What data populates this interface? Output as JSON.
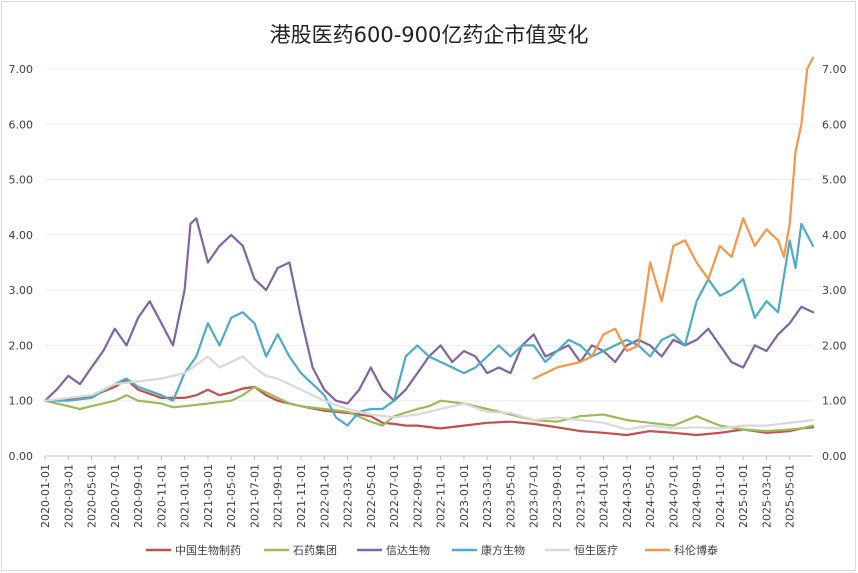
{
  "chart_data": {
    "type": "line",
    "title": "港股医药600-900亿药企市值变化",
    "xlabel": "",
    "ylabel": "",
    "ylim": [
      0,
      7
    ],
    "yticks": [
      "0.00",
      "1.00",
      "2.00",
      "3.00",
      "4.00",
      "5.00",
      "6.00",
      "7.00"
    ],
    "xticks": [
      "2020-01-01",
      "2020-03-01",
      "2020-05-01",
      "2020-07-01",
      "2020-09-01",
      "2020-11-01",
      "2021-01-01",
      "2021-03-01",
      "2021-05-01",
      "2021-07-01",
      "2021-09-01",
      "2021-11-01",
      "2022-01-01",
      "2022-03-01",
      "2022-05-01",
      "2022-07-01",
      "2022-09-01",
      "2022-11-01",
      "2023-01-01",
      "2023-03-01",
      "2023-05-01",
      "2023-07-01",
      "2023-09-01",
      "2023-11-01",
      "2024-01-01",
      "2024-03-01",
      "2024-05-01",
      "2024-07-01",
      "2024-09-01",
      "2024-11-01",
      "2025-01-01",
      "2025-03-01",
      "2025-05-01"
    ],
    "grid": "horizontal",
    "legend": "bottom",
    "x_unit": "month index from 2020-01",
    "series": [
      {
        "name": "中国生物制药",
        "color": "#c0504d",
        "x": [
          0,
          2,
          4,
          6,
          7,
          8,
          10,
          12,
          13,
          14,
          15,
          16,
          17,
          18,
          19,
          20,
          21,
          22,
          24,
          26,
          28,
          29,
          30,
          31,
          32,
          34,
          36,
          38,
          40,
          42,
          44,
          46,
          48,
          50,
          52,
          54,
          56,
          58,
          60,
          62,
          64,
          65,
          66
        ],
        "values": [
          1.0,
          1.02,
          1.08,
          1.25,
          1.38,
          1.2,
          1.05,
          1.05,
          1.1,
          1.2,
          1.1,
          1.15,
          1.22,
          1.25,
          1.1,
          1.0,
          0.95,
          0.9,
          0.82,
          0.78,
          0.72,
          0.6,
          0.58,
          0.55,
          0.55,
          0.5,
          0.55,
          0.6,
          0.62,
          0.58,
          0.52,
          0.45,
          0.42,
          0.38,
          0.45,
          0.42,
          0.38,
          0.42,
          0.48,
          0.42,
          0.45,
          0.5,
          0.52
        ]
      },
      {
        "name": "石药集团",
        "color": "#9bbb59",
        "x": [
          0,
          1,
          2,
          3,
          4,
          6,
          7,
          8,
          10,
          11,
          12,
          14,
          16,
          17,
          18,
          19,
          20,
          21,
          22,
          24,
          26,
          28,
          29,
          30,
          32,
          33,
          34,
          36,
          38,
          40,
          41,
          42,
          44,
          46,
          48,
          50,
          52,
          54,
          56,
          58,
          60,
          62,
          64,
          65,
          66
        ],
        "values": [
          1.0,
          0.95,
          0.9,
          0.85,
          0.9,
          1.0,
          1.1,
          1.0,
          0.95,
          0.88,
          0.9,
          0.95,
          1.0,
          1.1,
          1.25,
          1.15,
          1.05,
          0.95,
          0.9,
          0.85,
          0.8,
          0.62,
          0.55,
          0.72,
          0.85,
          0.9,
          1.0,
          0.95,
          0.85,
          0.75,
          0.7,
          0.65,
          0.62,
          0.72,
          0.75,
          0.65,
          0.6,
          0.55,
          0.72,
          0.55,
          0.48,
          0.45,
          0.48,
          0.5,
          0.55
        ]
      },
      {
        "name": "信达生物",
        "color": "#8064a2",
        "x": [
          0,
          1,
          2,
          3,
          4,
          5,
          6,
          7,
          8,
          9,
          10,
          11,
          12,
          12.5,
          13,
          14,
          15,
          16,
          17,
          18,
          19,
          20,
          21,
          22,
          23,
          24,
          25,
          26,
          27,
          28,
          29,
          30,
          31,
          32,
          33,
          34,
          35,
          36,
          37,
          38,
          39,
          40,
          41,
          42,
          43,
          44,
          45,
          46,
          47,
          48,
          49,
          50,
          51,
          52,
          53,
          54,
          55,
          56,
          57,
          58,
          59,
          60,
          61,
          62,
          63,
          64,
          65,
          66
        ],
        "values": [
          1.0,
          1.2,
          1.45,
          1.3,
          1.6,
          1.9,
          2.3,
          2.0,
          2.5,
          2.8,
          2.4,
          2.0,
          3.0,
          4.2,
          4.3,
          3.5,
          3.8,
          4.0,
          3.8,
          3.2,
          3.0,
          3.4,
          3.5,
          2.5,
          1.6,
          1.2,
          1.0,
          0.95,
          1.2,
          1.6,
          1.2,
          1.0,
          1.2,
          1.5,
          1.8,
          2.0,
          1.7,
          1.9,
          1.8,
          1.5,
          1.6,
          1.5,
          2.0,
          2.2,
          1.8,
          1.9,
          2.0,
          1.7,
          2.0,
          1.9,
          1.7,
          2.0,
          2.1,
          2.0,
          1.8,
          2.1,
          2.0,
          2.1,
          2.3,
          2.0,
          1.7,
          1.6,
          2.0,
          1.9,
          2.2,
          2.4,
          2.7,
          2.6
        ]
      },
      {
        "name": "康方生物",
        "color": "#4bacc6",
        "x": [
          0,
          2,
          4,
          6,
          7,
          8,
          10,
          11,
          12,
          13,
          14,
          15,
          16,
          17,
          18,
          19,
          20,
          21,
          22,
          23,
          24,
          25,
          26,
          27,
          28,
          29,
          30,
          31,
          32,
          33,
          34,
          35,
          36,
          37,
          38,
          39,
          40,
          41,
          42,
          43,
          44,
          45,
          46,
          47,
          48,
          49,
          50,
          51,
          52,
          53,
          54,
          55,
          56,
          57,
          58,
          59,
          60,
          61,
          62,
          63,
          64,
          64.5,
          65,
          66
        ],
        "values": [
          1.0,
          1.0,
          1.05,
          1.3,
          1.4,
          1.25,
          1.1,
          1.0,
          1.5,
          1.8,
          2.4,
          2.0,
          2.5,
          2.6,
          2.4,
          1.8,
          2.2,
          1.8,
          1.5,
          1.3,
          1.1,
          0.7,
          0.55,
          0.8,
          0.85,
          0.85,
          1.0,
          1.8,
          2.0,
          1.8,
          1.7,
          1.6,
          1.5,
          1.6,
          1.8,
          2.0,
          1.8,
          2.0,
          2.0,
          1.7,
          1.9,
          2.1,
          2.0,
          1.8,
          1.9,
          2.0,
          2.1,
          2.0,
          1.8,
          2.1,
          2.2,
          2.0,
          2.8,
          3.2,
          2.9,
          3.0,
          3.2,
          2.5,
          2.8,
          2.6,
          3.9,
          3.4,
          4.2,
          3.8
        ]
      },
      {
        "name": "恒生医疗",
        "color": "#d9d9d9",
        "x": [
          0,
          2,
          4,
          6,
          8,
          10,
          12,
          14,
          15,
          16,
          17,
          18,
          19,
          20,
          21,
          22,
          24,
          26,
          28,
          30,
          32,
          34,
          36,
          38,
          40,
          42,
          44,
          46,
          48,
          50,
          52,
          54,
          56,
          58,
          60,
          62,
          64,
          66
        ],
        "values": [
          1.0,
          1.05,
          1.1,
          1.3,
          1.35,
          1.4,
          1.5,
          1.8,
          1.6,
          1.7,
          1.8,
          1.6,
          1.45,
          1.4,
          1.3,
          1.2,
          1.0,
          0.85,
          0.75,
          0.7,
          0.75,
          0.85,
          0.95,
          0.8,
          0.78,
          0.65,
          0.7,
          0.65,
          0.6,
          0.48,
          0.55,
          0.5,
          0.52,
          0.5,
          0.55,
          0.55,
          0.6,
          0.65
        ]
      },
      {
        "name": "科伦博泰",
        "color": "#f79646",
        "x": [
          42,
          43,
          44,
          45,
          46,
          47,
          48,
          49,
          50,
          51,
          52,
          53,
          54,
          55,
          56,
          57,
          58,
          59,
          60,
          61,
          62,
          63,
          63.5,
          64,
          64.5,
          65,
          65.5,
          66
        ],
        "values": [
          1.4,
          1.5,
          1.6,
          1.65,
          1.7,
          1.8,
          2.2,
          2.3,
          1.9,
          2.0,
          3.5,
          2.8,
          3.8,
          3.9,
          3.5,
          3.2,
          3.8,
          3.6,
          4.3,
          3.8,
          4.1,
          3.9,
          3.6,
          4.2,
          5.5,
          6.0,
          7.0,
          7.2
        ]
      }
    ]
  }
}
